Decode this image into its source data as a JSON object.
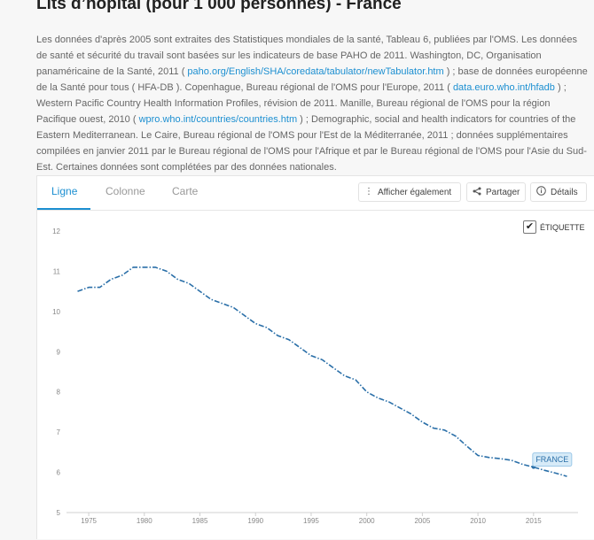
{
  "page": {
    "title": "Lits d’hôpital (pour 1 000 personnes) - France"
  },
  "note": {
    "p1": "Les données d'après 2005 sont extraites des Statistiques mondiales de la santé, Tableau 6, publiées par l'OMS. Les données de santé et sécurité du travail sont basées sur les indicateurs de base PAHO de 2011. Washington, DC, Organisation panaméricaine de la Santé, 2011 ( ",
    "link1": "paho.org/English/SHA/coredata/tabulator/newTabulator.htm",
    "p2": " ) ; base de données européenne de la Santé pour tous ( HFA-DB ). Copenhague, Bureau régional de l'OMS pour l'Europe, 2011 ( ",
    "link2": "data.euro.who.int/hfadb",
    "p3": " ) ; Western Pacific Country Health Information Profiles, révision de 2011. Manille, Bureau régional de l'OMS pour la région Pacifique ouest, 2010 ( ",
    "link3": "wpro.who.int/countries/countries.htm",
    "p4": " ) ; Demographic, social and health indicators for countries of the Eastern Mediterranean. Le Caire, Bureau régional de l'OMS pour l'Est de la Méditerranée, 2011 ; données supplémentaires compilées en janvier 2011 par le Bureau régional de l'OMS pour l'Afrique et par le Bureau régional de l'OMS pour l'Asie du Sud-Est. Certaines données sont complétées par des données nationales."
  },
  "tabs": [
    {
      "label": "Ligne",
      "active": true
    },
    {
      "label": "Colonne",
      "active": false
    },
    {
      "label": "Carte",
      "active": false
    }
  ],
  "toolbar": {
    "also_label": "Afficher également",
    "share_label": "Partager",
    "details_label": "Détails",
    "also_icon": "vertical-dots-icon",
    "share_icon": "share-icon",
    "details_icon": "info-icon"
  },
  "label_toggle": {
    "label": "ÉTIQUETTE",
    "checked": true
  },
  "chart_data": {
    "type": "line",
    "title": "",
    "xlabel": "",
    "ylabel": "",
    "ylim": [
      5,
      12
    ],
    "xlim": [
      1973,
      2019
    ],
    "y_ticks": [
      "5",
      "6",
      "7",
      "8",
      "9",
      "10",
      "11",
      "12"
    ],
    "x_ticks": [
      "1975",
      "1980",
      "1985",
      "1990",
      "1995",
      "2000",
      "2005",
      "2010",
      "2015"
    ],
    "x_tick_values": [
      1975,
      1980,
      1985,
      1990,
      1995,
      2000,
      2005,
      2010,
      2015
    ],
    "grid": false,
    "line_style": "dash-dot",
    "series": [
      {
        "name": "FRANCE",
        "color": "#2a6fa8",
        "x": [
          1974,
          1975,
          1976,
          1977,
          1978,
          1979,
          1980,
          1981,
          1982,
          1983,
          1984,
          1985,
          1986,
          1987,
          1988,
          1989,
          1990,
          1991,
          1992,
          1993,
          1994,
          1995,
          1996,
          1997,
          1998,
          1999,
          2000,
          2001,
          2002,
          2003,
          2004,
          2005,
          2006,
          2007,
          2008,
          2009,
          2010,
          2011,
          2012,
          2013,
          2014,
          2015,
          2016,
          2017,
          2018
        ],
        "values": [
          10.5,
          10.6,
          10.6,
          10.8,
          10.9,
          11.1,
          11.1,
          11.1,
          11.0,
          10.8,
          10.7,
          10.5,
          10.3,
          10.2,
          10.1,
          9.9,
          9.7,
          9.6,
          9.4,
          9.3,
          9.1,
          8.9,
          8.8,
          8.6,
          8.4,
          8.3,
          8.0,
          7.85,
          7.75,
          7.6,
          7.45,
          7.25,
          7.1,
          7.05,
          6.9,
          6.65,
          6.42,
          6.37,
          6.34,
          6.3,
          6.2,
          6.13,
          6.05,
          5.98,
          5.9
        ]
      }
    ],
    "end_label": "FRANCE"
  }
}
